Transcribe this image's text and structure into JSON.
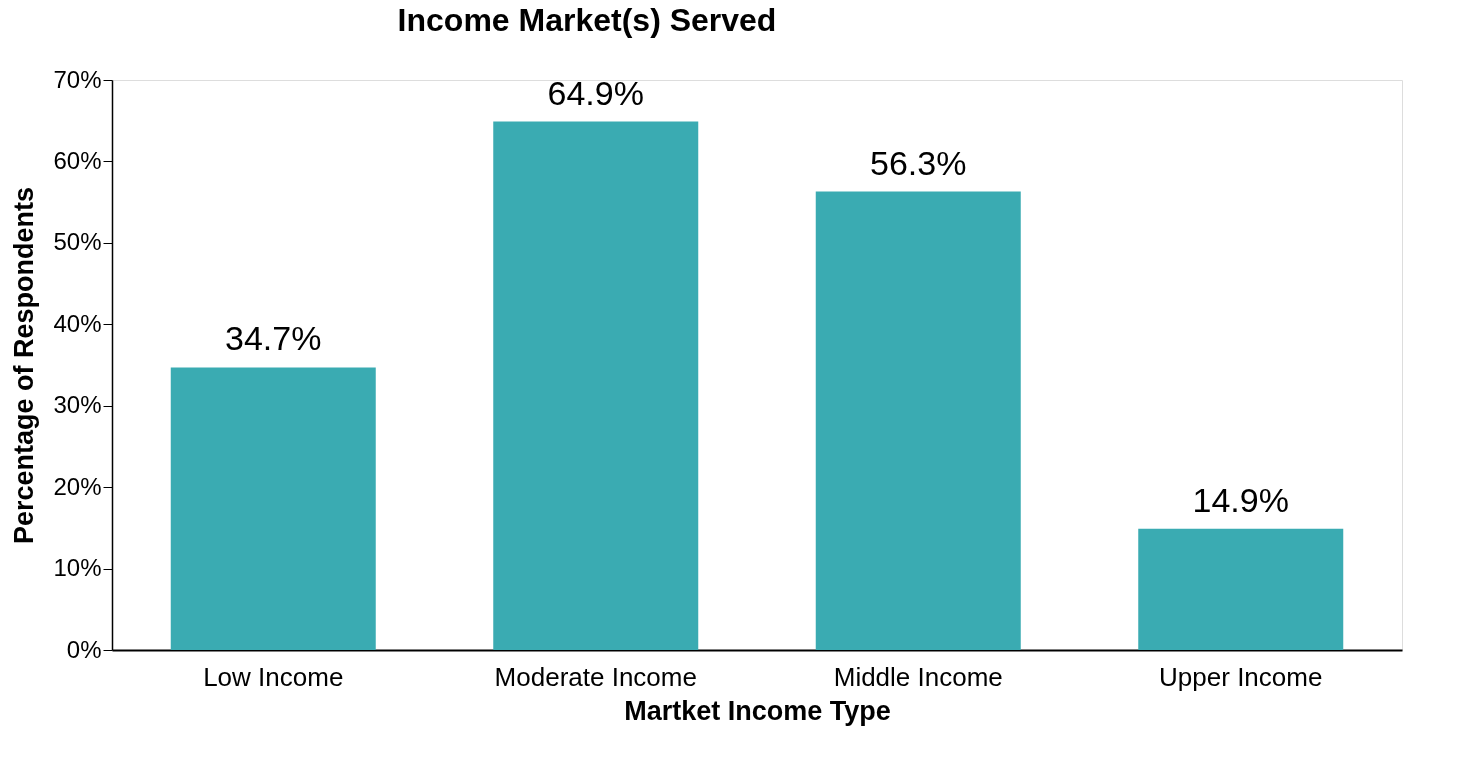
{
  "chart_data": {
    "type": "bar",
    "title": "Income Market(s) Served",
    "xlabel": "Martket Income Type",
    "ylabel": "Percentage of Respondents",
    "categories": [
      "Low Income",
      "Moderate Income",
      "Middle Income",
      "Upper Income"
    ],
    "values": [
      34.7,
      64.9,
      56.3,
      14.9
    ],
    "value_labels": [
      "34.7%",
      "64.9%",
      "56.3%",
      "14.9%"
    ],
    "color": "#3aabb2",
    "ylim": [
      0,
      70
    ],
    "yticks": [
      {
        "value": 0,
        "label": "0%"
      },
      {
        "value": 10,
        "label": "10%"
      },
      {
        "value": 20,
        "label": "20%"
      },
      {
        "value": 30,
        "label": "30%"
      },
      {
        "value": 40,
        "label": "40%"
      },
      {
        "value": 50,
        "label": "50%"
      },
      {
        "value": 60,
        "label": "60%"
      },
      {
        "value": 70,
        "label": "70%"
      }
    ],
    "grid": false
  }
}
